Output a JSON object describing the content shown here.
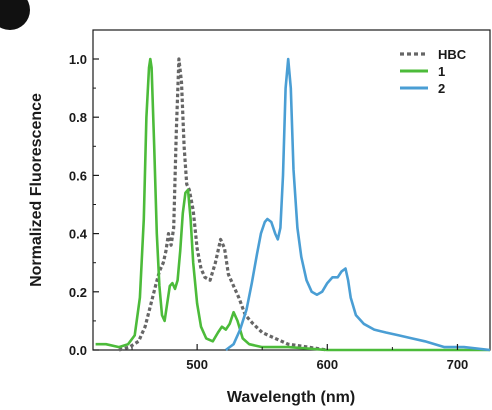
{
  "panel_badge": {
    "color": "#111111"
  },
  "chart_data": {
    "type": "line",
    "title": "",
    "xlabel": "Wavelength (nm)",
    "ylabel": "Normalized Fluorescence",
    "xlim": [
      420,
      725
    ],
    "ylim": [
      0,
      1.1
    ],
    "x_ticks": [
      500,
      600,
      700
    ],
    "y_ticks": [
      0.0,
      0.2,
      0.4,
      0.6,
      0.8,
      1.0
    ],
    "x_tick_labels": [
      "500",
      "600",
      "700"
    ],
    "y_tick_labels": [
      "0.0",
      "0.2",
      "0.4",
      "0.6",
      "0.8",
      "1.0"
    ],
    "grid": false,
    "legend_position": "top-right",
    "series": [
      {
        "name": "HBC",
        "color": "#666666",
        "style": "dotted",
        "points": [
          [
            440,
            0.0
          ],
          [
            448,
            0.01
          ],
          [
            455,
            0.03
          ],
          [
            460,
            0.08
          ],
          [
            464,
            0.15
          ],
          [
            468,
            0.22
          ],
          [
            471,
            0.27
          ],
          [
            474,
            0.3
          ],
          [
            476,
            0.34
          ],
          [
            478,
            0.4
          ],
          [
            480,
            0.36
          ],
          [
            482,
            0.42
          ],
          [
            484,
            0.75
          ],
          [
            486,
            1.0
          ],
          [
            488,
            0.92
          ],
          [
            490,
            0.7
          ],
          [
            492,
            0.57
          ],
          [
            494,
            0.55
          ],
          [
            497,
            0.48
          ],
          [
            500,
            0.35
          ],
          [
            503,
            0.28
          ],
          [
            506,
            0.25
          ],
          [
            510,
            0.24
          ],
          [
            514,
            0.3
          ],
          [
            518,
            0.38
          ],
          [
            521,
            0.35
          ],
          [
            524,
            0.26
          ],
          [
            528,
            0.22
          ],
          [
            532,
            0.18
          ],
          [
            537,
            0.12
          ],
          [
            543,
            0.09
          ],
          [
            550,
            0.06
          ],
          [
            560,
            0.04
          ],
          [
            570,
            0.02
          ],
          [
            585,
            0.01
          ],
          [
            600,
            0.0
          ]
        ]
      },
      {
        "name": "1",
        "color": "#4cbb3a",
        "style": "solid",
        "points": [
          [
            422,
            0.02
          ],
          [
            430,
            0.02
          ],
          [
            440,
            0.01
          ],
          [
            447,
            0.02
          ],
          [
            452,
            0.05
          ],
          [
            456,
            0.18
          ],
          [
            459,
            0.45
          ],
          [
            461,
            0.8
          ],
          [
            463,
            0.97
          ],
          [
            464,
            1.0
          ],
          [
            465,
            0.97
          ],
          [
            467,
            0.7
          ],
          [
            469,
            0.4
          ],
          [
            471,
            0.22
          ],
          [
            473,
            0.12
          ],
          [
            475,
            0.1
          ],
          [
            477,
            0.16
          ],
          [
            479,
            0.22
          ],
          [
            481,
            0.23
          ],
          [
            483,
            0.21
          ],
          [
            485,
            0.24
          ],
          [
            487,
            0.34
          ],
          [
            489,
            0.47
          ],
          [
            491,
            0.54
          ],
          [
            493,
            0.55
          ],
          [
            495,
            0.45
          ],
          [
            497,
            0.3
          ],
          [
            500,
            0.16
          ],
          [
            503,
            0.08
          ],
          [
            507,
            0.04
          ],
          [
            512,
            0.03
          ],
          [
            516,
            0.06
          ],
          [
            519,
            0.08
          ],
          [
            522,
            0.07
          ],
          [
            525,
            0.09
          ],
          [
            528,
            0.13
          ],
          [
            531,
            0.1
          ],
          [
            535,
            0.04
          ],
          [
            540,
            0.02
          ],
          [
            550,
            0.01
          ],
          [
            570,
            0.01
          ],
          [
            600,
            0.0
          ],
          [
            650,
            0.0
          ],
          [
            725,
            0.0
          ]
        ]
      },
      {
        "name": "2",
        "color": "#4a9ed4",
        "style": "solid",
        "points": [
          [
            522,
            0.0
          ],
          [
            528,
            0.02
          ],
          [
            533,
            0.07
          ],
          [
            538,
            0.14
          ],
          [
            542,
            0.23
          ],
          [
            546,
            0.33
          ],
          [
            549,
            0.4
          ],
          [
            552,
            0.44
          ],
          [
            554,
            0.45
          ],
          [
            557,
            0.44
          ],
          [
            560,
            0.4
          ],
          [
            562,
            0.38
          ],
          [
            564,
            0.42
          ],
          [
            566,
            0.6
          ],
          [
            568,
            0.9
          ],
          [
            570,
            1.0
          ],
          [
            572,
            0.9
          ],
          [
            574,
            0.62
          ],
          [
            577,
            0.42
          ],
          [
            580,
            0.32
          ],
          [
            584,
            0.24
          ],
          [
            588,
            0.2
          ],
          [
            592,
            0.19
          ],
          [
            596,
            0.2
          ],
          [
            600,
            0.23
          ],
          [
            604,
            0.25
          ],
          [
            608,
            0.25
          ],
          [
            611,
            0.27
          ],
          [
            614,
            0.28
          ],
          [
            616,
            0.24
          ],
          [
            618,
            0.18
          ],
          [
            622,
            0.12
          ],
          [
            628,
            0.09
          ],
          [
            636,
            0.07
          ],
          [
            645,
            0.06
          ],
          [
            655,
            0.05
          ],
          [
            665,
            0.04
          ],
          [
            675,
            0.03
          ],
          [
            690,
            0.01
          ],
          [
            705,
            0.01
          ],
          [
            725,
            0.0
          ]
        ]
      }
    ]
  }
}
